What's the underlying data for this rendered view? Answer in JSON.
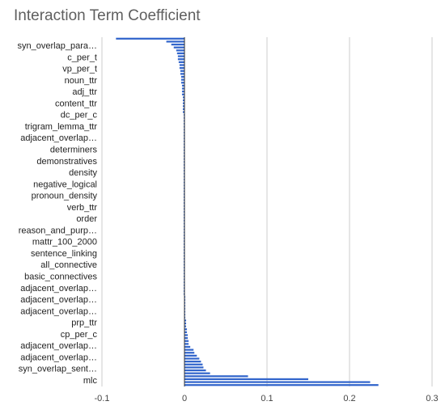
{
  "chart_data": {
    "type": "bar",
    "orientation": "horizontal",
    "title": "Interaction Term Coefficient",
    "xlabel": "",
    "ylabel": "",
    "xlim": [
      -0.1,
      0.3
    ],
    "xticks": [
      -0.1,
      0,
      0.1,
      0.2,
      0.3
    ],
    "grid": true,
    "legend": "none",
    "bar_color": "#3366cc",
    "y_tick_labels": [
      "syn_overlap_para…",
      "c_per_t",
      "vp_per_t",
      "noun_ttr",
      "adj_ttr",
      "content_ttr",
      "dc_per_c",
      "trigram_lemma_ttr",
      "adjacent_overlap…",
      "determiners",
      "demonstratives",
      "density",
      "negative_logical",
      "pronoun_density",
      "verb_ttr",
      "order",
      "reason_and_purp…",
      "mattr_100_2000",
      "sentence_linking",
      "all_connective",
      "basic_connectives",
      "adjacent_overlap…",
      "adjacent_overlap…",
      "adjacent_overlap…",
      "prp_ttr",
      "cp_per_c",
      "adjacent_overlap…",
      "adjacent_overlap…",
      "syn_overlap_sent…",
      "mlc"
    ],
    "values": [
      -0.083,
      -0.022,
      -0.016,
      -0.013,
      -0.01,
      -0.009,
      -0.008,
      -0.008,
      -0.007,
      -0.006,
      -0.006,
      -0.005,
      -0.005,
      -0.004,
      -0.004,
      -0.004,
      -0.003,
      -0.003,
      -0.003,
      -0.003,
      -0.002,
      -0.002,
      -0.002,
      -0.002,
      -0.002,
      -0.002,
      -0.001,
      -0.001,
      -0.001,
      -0.001,
      -0.001,
      -0.001,
      -0.001,
      -0.001,
      -0.001,
      -0.001,
      -0.001,
      -0.001,
      -0.001,
      -0.001,
      -0.001,
      -0.001,
      -0.001,
      -0.001,
      -0.001,
      -0.001,
      -0.001,
      -0.001,
      -0.001,
      -0.001,
      -0.001,
      -0.001,
      -0.001,
      -0.001,
      -0.001,
      -0.001,
      -0.001,
      -0.001,
      -0.001,
      -0.001,
      -0.001,
      -0.001,
      -0.001,
      -0.001,
      -0.001,
      -0.001,
      -0.001,
      -0.001,
      -0.001,
      -0.001,
      -0.001,
      -0.001,
      -0.001,
      -0.001,
      -0.001,
      -0.001,
      -0.001,
      -0.001,
      -0.001,
      -0.001,
      -0.001,
      -0.001,
      -0.001,
      -0.001,
      -0.001,
      -0.001,
      -0.001,
      -0.001,
      0.001,
      0.001,
      0.001,
      0.001,
      0.001,
      0.001,
      0.001,
      0.001,
      0.002,
      0.002,
      0.002,
      0.003,
      0.003,
      0.004,
      0.004,
      0.005,
      0.005,
      0.007,
      0.011,
      0.012,
      0.015,
      0.018,
      0.02,
      0.022,
      0.023,
      0.026,
      0.031,
      0.077,
      0.15,
      0.225,
      0.235
    ]
  }
}
